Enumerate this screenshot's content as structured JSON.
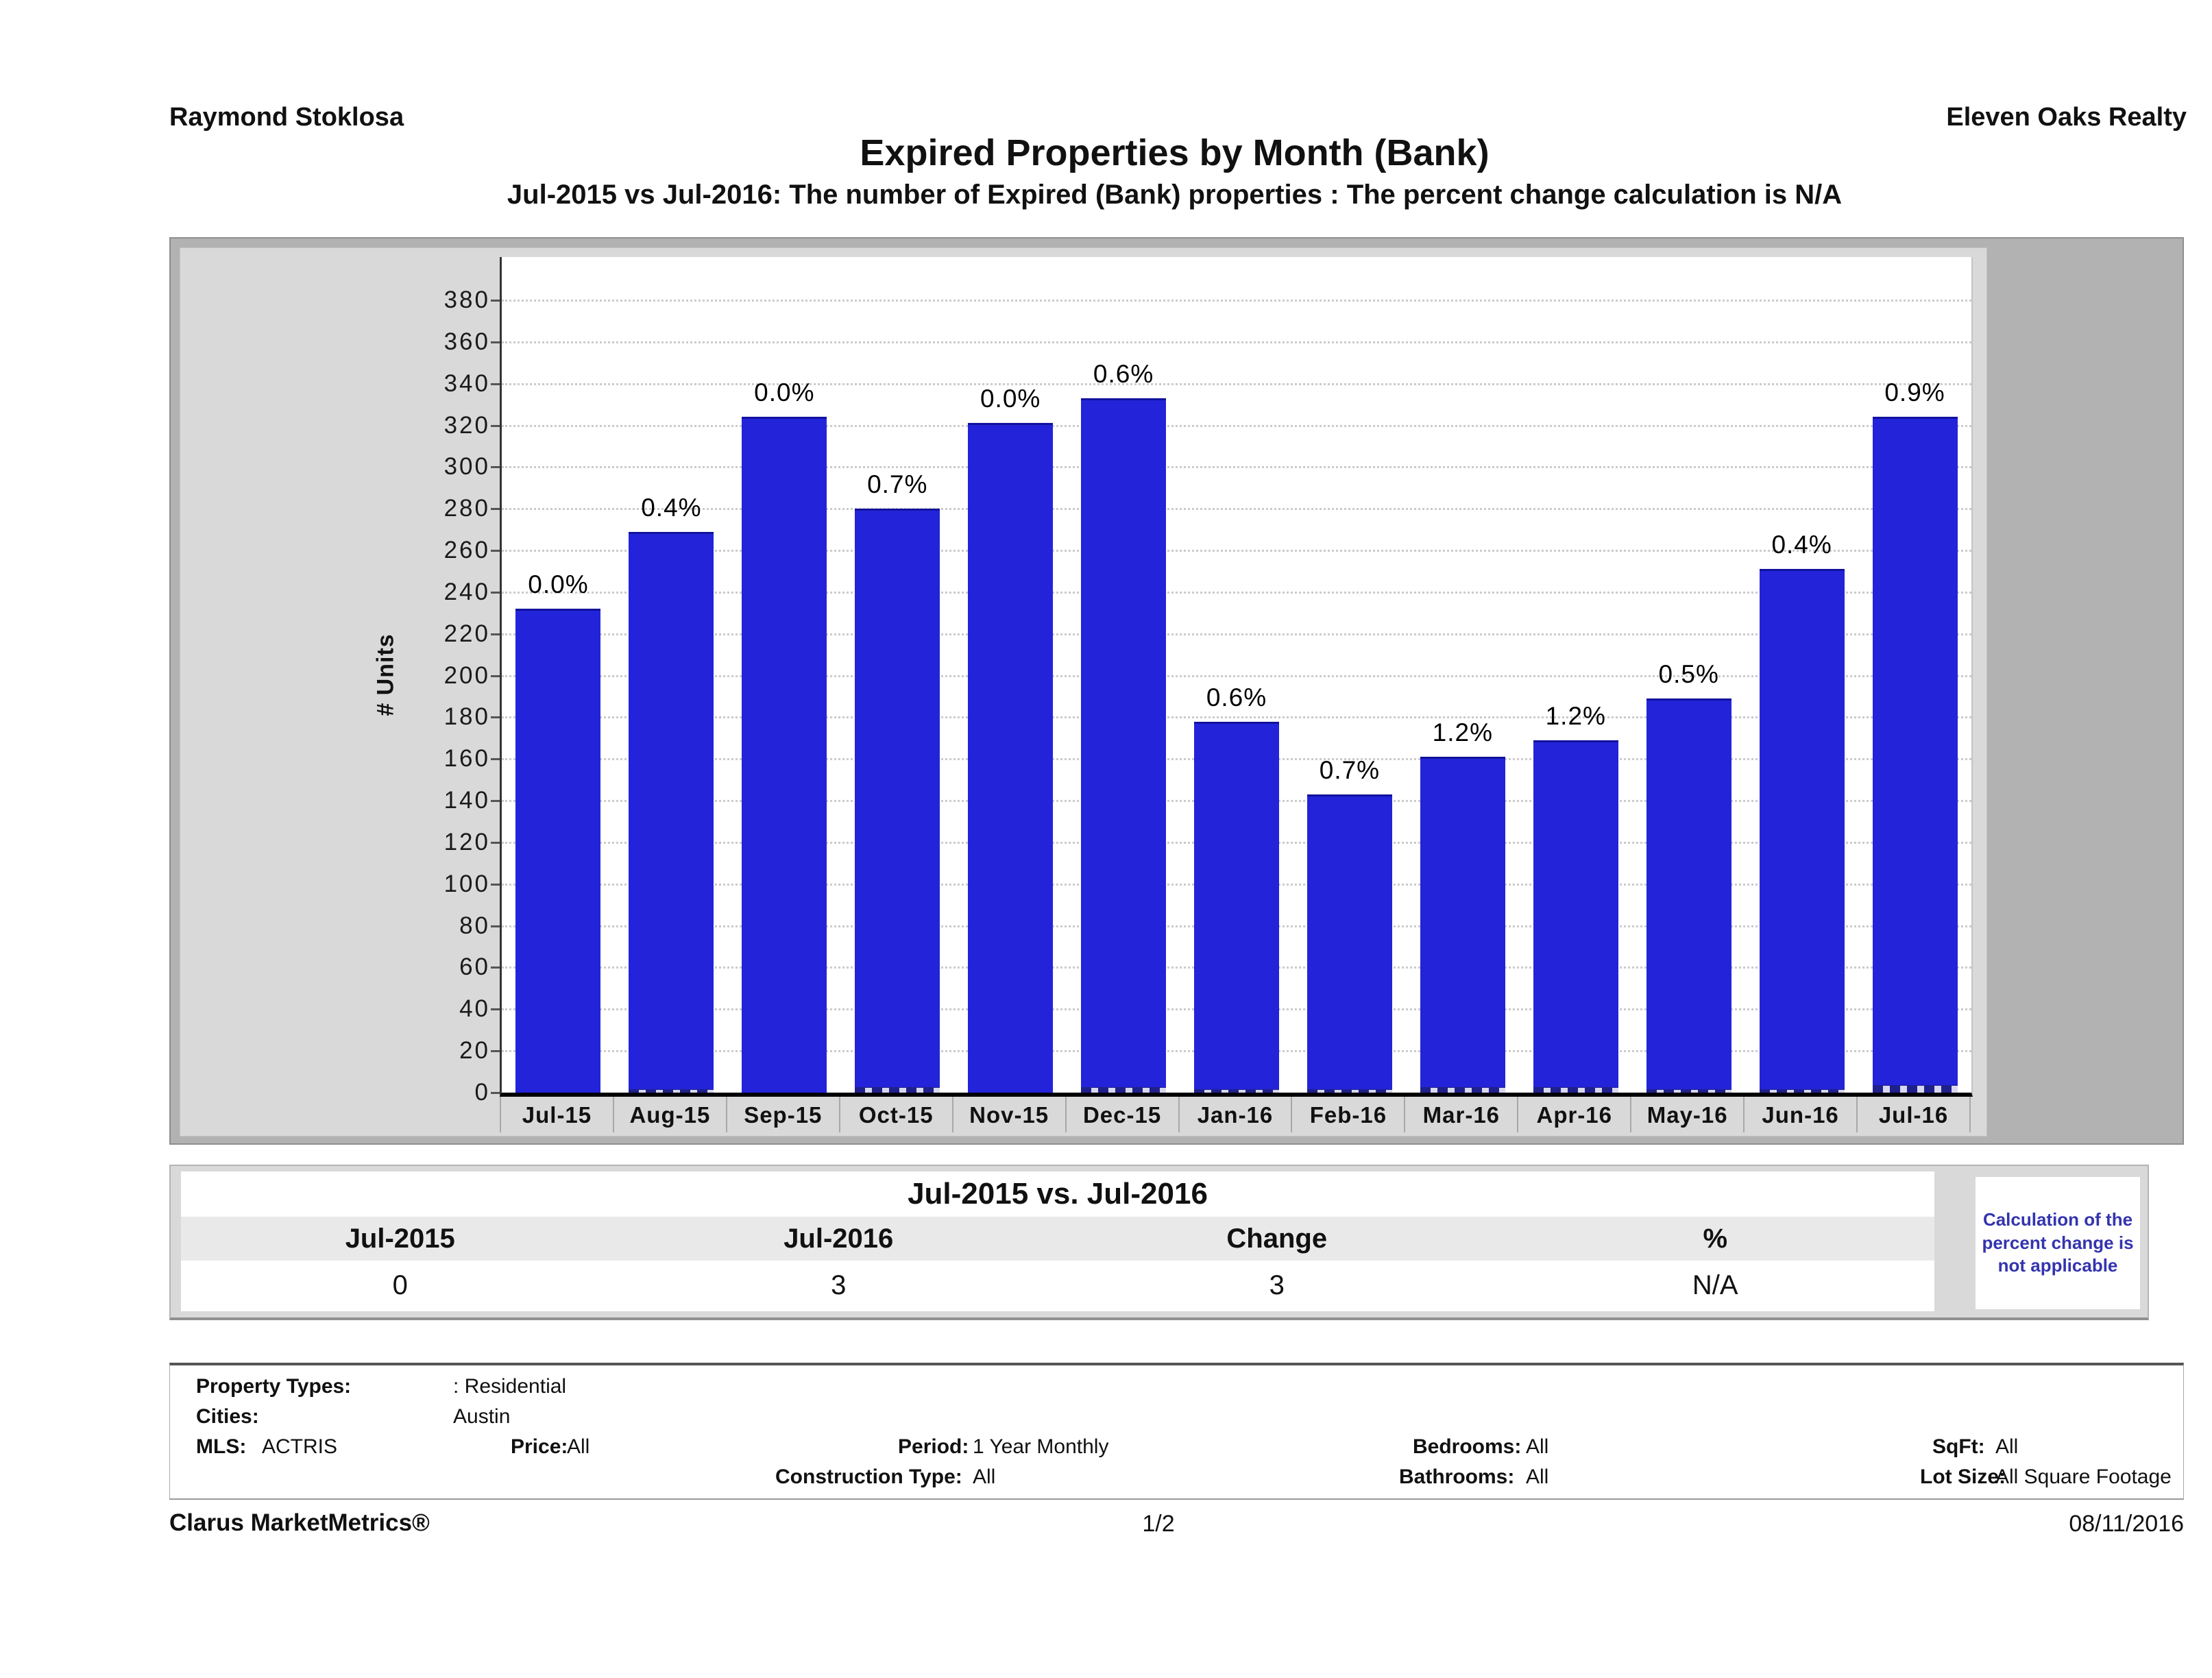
{
  "header": {
    "left": "Raymond Stoklosa",
    "right": "Eleven Oaks Realty"
  },
  "title": "Expired Properties by Month (Bank)",
  "subtitle": "Jul-2015 vs Jul-2016: The number of Expired (Bank)  properties :  The percent change calculation is N/A",
  "chart_data": {
    "type": "bar",
    "title": "Expired Properties by Month (Bank)",
    "xlabel": "",
    "ylabel": "# Units",
    "ylim": [
      0,
      400
    ],
    "ytick_step": 20,
    "ytick_max": 380,
    "grid": "dotted-horizontal",
    "legend": "none",
    "categories": [
      "Jul-15",
      "Aug-15",
      "Sep-15",
      "Oct-15",
      "Nov-15",
      "Dec-15",
      "Jan-16",
      "Feb-16",
      "Mar-16",
      "Apr-16",
      "May-16",
      "Jun-16",
      "Jul-16"
    ],
    "series": [
      {
        "name": "Expired properties (# Units)",
        "color": "#2323d9",
        "values": [
          232,
          269,
          324,
          280,
          321,
          333,
          178,
          143,
          161,
          169,
          189,
          251,
          324
        ]
      },
      {
        "name": "Expired (Bank) properties (tiny dashed bars)",
        "color": "#20208c",
        "values": [
          0,
          1,
          0,
          2,
          0,
          2,
          1,
          1,
          2,
          2,
          1,
          1,
          3
        ]
      }
    ],
    "bar_labels": [
      "0.0%",
      "0.4%",
      "0.0%",
      "0.7%",
      "0.0%",
      "0.6%",
      "0.6%",
      "0.7%",
      "1.2%",
      "1.2%",
      "0.5%",
      "0.4%",
      "0.9%"
    ]
  },
  "comparison_table": {
    "title": "Jul-2015 vs. Jul-2016",
    "columns": [
      "Jul-2015",
      "Jul-2016",
      "Change",
      "%"
    ],
    "values": [
      "0",
      "3",
      "3",
      "N/A"
    ],
    "note": "Calculation of the percent change is not applicable"
  },
  "filters": {
    "property_types_label": "Property Types:",
    "property_types": ": Residential",
    "cities_label": "Cities:",
    "cities": "Austin",
    "mls_label": "MLS:",
    "mls": "ACTRIS",
    "price_label": "Price:",
    "price": "All",
    "period_label": "Period:",
    "period": "1 Year Monthly",
    "construction_label": "Construction Type:",
    "construction": "All",
    "bedrooms_label": "Bedrooms:",
    "bedrooms": "All",
    "bathrooms_label": "Bathrooms:",
    "bathrooms": "All",
    "sqft_label": "SqFt:",
    "sqft": "All",
    "lot_label": "Lot Size:",
    "lot": "All Square Footage"
  },
  "footer": {
    "brand": "Clarus MarketMetrics®",
    "page": "1/2",
    "date": "08/11/2016"
  }
}
